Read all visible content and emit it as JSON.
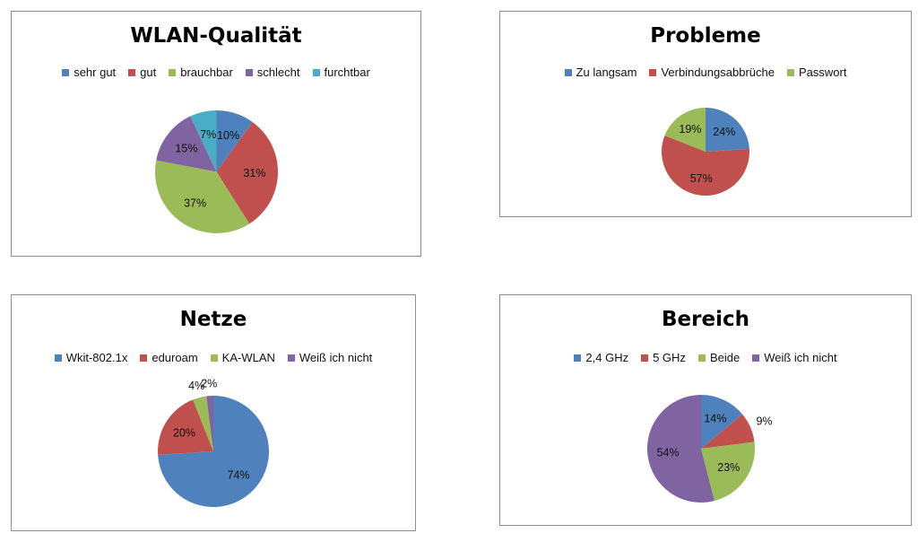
{
  "chart_data": [
    {
      "type": "pie",
      "title": "WLAN-Qualität",
      "categories": [
        "sehr gut",
        "gut",
        "brauchbar",
        "schlecht",
        "furchtbar"
      ],
      "values": [
        10,
        31,
        37,
        15,
        7
      ],
      "labels": [
        "10%",
        "31%",
        "37%",
        "15%",
        "7%"
      ],
      "colors": [
        "#4f81bd",
        "#c0504d",
        "#9bbb59",
        "#8064a2",
        "#4bacc6"
      ],
      "legend": "top"
    },
    {
      "type": "pie",
      "title": "Probleme",
      "categories": [
        "Zu langsam",
        "Verbindungsabbrüche",
        "Passwort"
      ],
      "values": [
        24,
        57,
        19
      ],
      "labels": [
        "24%",
        "57%",
        "19%"
      ],
      "colors": [
        "#4f81bd",
        "#c0504d",
        "#9bbb59"
      ],
      "legend": "top"
    },
    {
      "type": "pie",
      "title": "Netze",
      "categories": [
        "Wkit-802.1x",
        "eduroam",
        "KA-WLAN",
        "Weiß ich nicht"
      ],
      "values": [
        74,
        20,
        4,
        2
      ],
      "labels": [
        "74%",
        "20%",
        "4%",
        "2%"
      ],
      "colors": [
        "#4f81bd",
        "#c0504d",
        "#9bbb59",
        "#8064a2"
      ],
      "legend": "top"
    },
    {
      "type": "pie",
      "title": "Bereich",
      "categories": [
        "2,4 GHz",
        "5 GHz",
        "Beide",
        "Weiß ich nicht"
      ],
      "values": [
        14,
        9,
        23,
        54
      ],
      "labels": [
        "14%",
        "9%",
        "23%",
        "54%"
      ],
      "colors": [
        "#4f81bd",
        "#c0504d",
        "#9bbb59",
        "#8064a2"
      ],
      "legend": "top"
    }
  ]
}
